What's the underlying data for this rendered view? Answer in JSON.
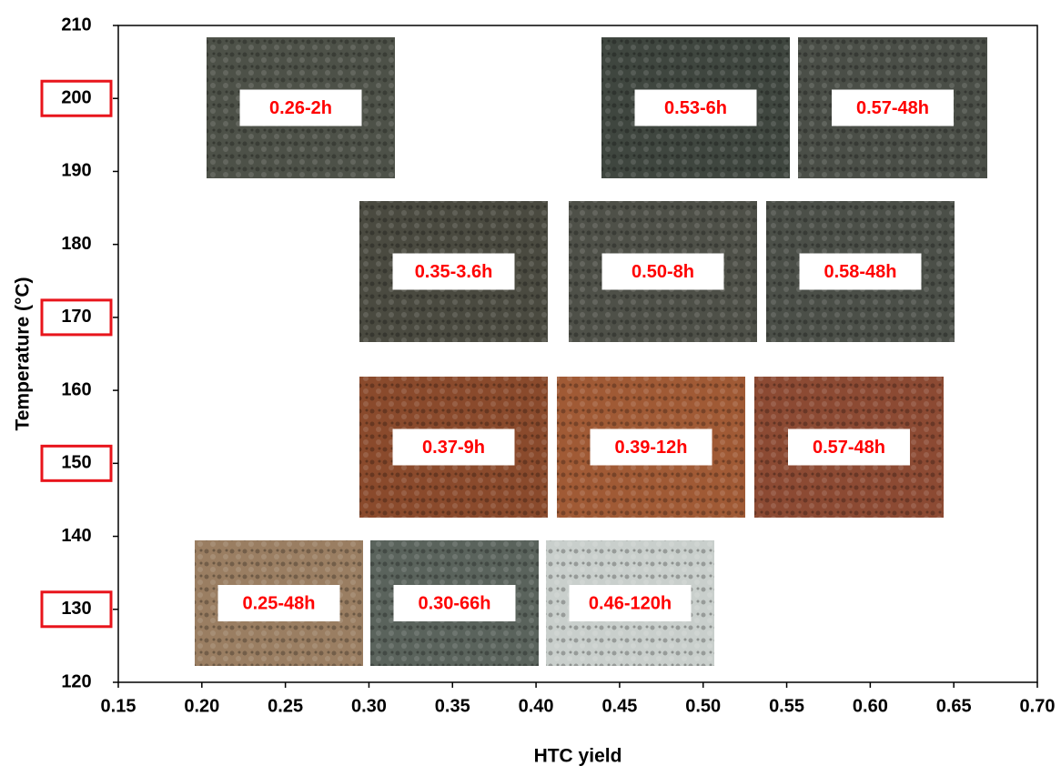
{
  "chart_data": {
    "type": "photo-map",
    "x_label": "HTC yield",
    "y_label": "Temperature (°C)",
    "xlim": [
      0.15,
      0.7
    ],
    "xticks": [
      {
        "value": 0.15,
        "label": "0.15"
      },
      {
        "value": 0.2,
        "label": "0.20"
      },
      {
        "value": 0.25,
        "label": "0.25"
      },
      {
        "value": 0.3,
        "label": "0.30"
      },
      {
        "value": 0.35,
        "label": "0.35"
      },
      {
        "value": 0.4,
        "label": "0.40"
      },
      {
        "value": 0.45,
        "label": "0.45"
      },
      {
        "value": 0.5,
        "label": "0.50"
      },
      {
        "value": 0.55,
        "label": "0.55"
      },
      {
        "value": 0.6,
        "label": "0.60"
      },
      {
        "value": 0.65,
        "label": "0.65"
      },
      {
        "value": 0.7,
        "label": "0.70"
      }
    ],
    "ylim": [
      120,
      210
    ],
    "yticks": [
      120,
      130,
      140,
      150,
      160,
      170,
      180,
      190,
      200,
      210
    ],
    "annotations": [
      "0.26-2h",
      "0.53-6h",
      "0.57-48h",
      "0.35-3.6h",
      "0.50-8h",
      "0.58-48h",
      "0.37-9h",
      "0.39-12h",
      "0.57-48h",
      "0.25-48h",
      "0.30-66h",
      "0.46-120h"
    ]
  }
}
